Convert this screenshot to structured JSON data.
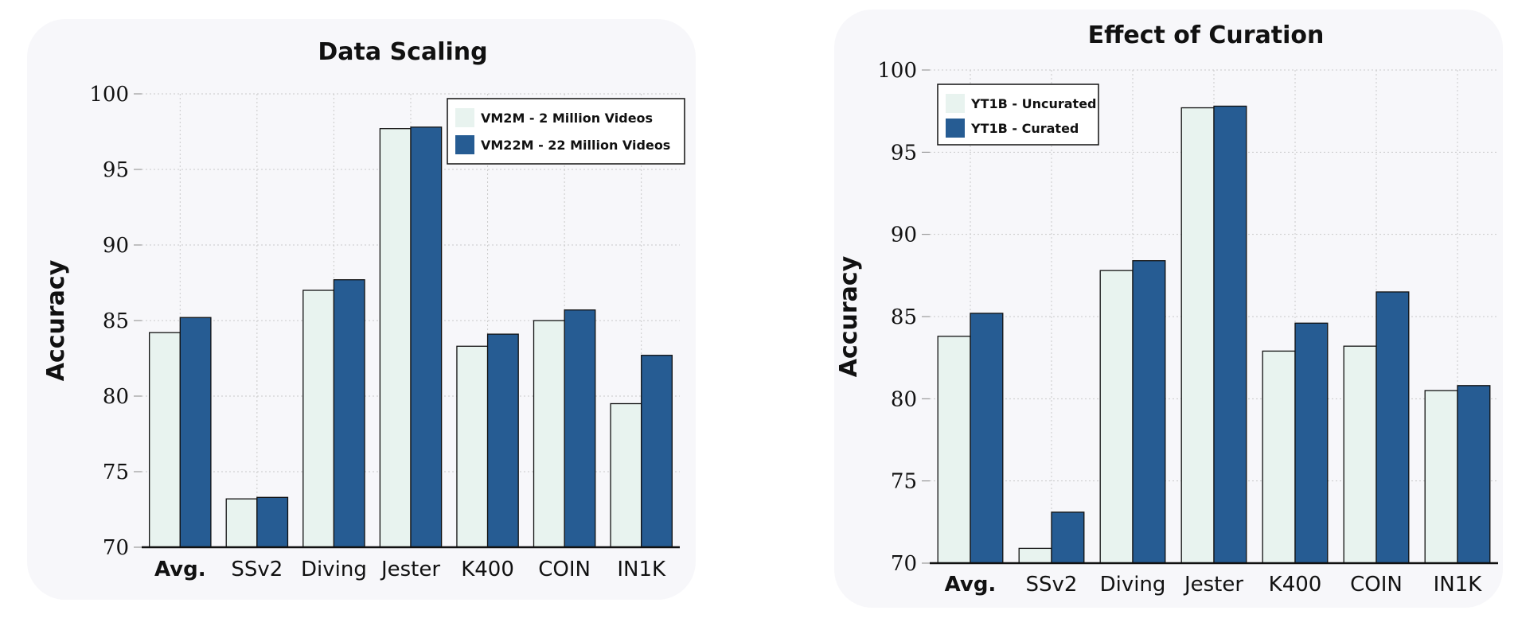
{
  "colors": {
    "panel_bg": "#f7f7fa",
    "light_bar": "#e8f3ef",
    "dark_bar": "#265c93",
    "bar_stroke": "#111111"
  },
  "chart_data": [
    {
      "type": "bar",
      "title": "Data Scaling",
      "xlabel": "",
      "ylabel": "Accuracy",
      "ylim": [
        70,
        100
      ],
      "yticks": [
        "70",
        "75",
        "80",
        "85",
        "90",
        "95",
        "100"
      ],
      "categories": [
        "Avg.",
        "SSv2",
        "Diving",
        "Jester",
        "K400",
        "COIN",
        "IN1K"
      ],
      "bold_category": "Avg.",
      "grid": true,
      "legend_position": "top-right",
      "series": [
        {
          "name": "VM2M - 2 Million Videos",
          "color": "#e8f3ef",
          "values": [
            84.2,
            73.2,
            87.0,
            97.7,
            83.3,
            85.0,
            79.5
          ]
        },
        {
          "name": "VM22M - 22 Million Videos",
          "color": "#265c93",
          "values": [
            85.2,
            73.3,
            87.7,
            97.8,
            84.1,
            85.7,
            82.7
          ]
        }
      ]
    },
    {
      "type": "bar",
      "title": "Effect of Curation",
      "xlabel": "",
      "ylabel": "Accuracy",
      "ylim": [
        70,
        100
      ],
      "yticks": [
        "70",
        "75",
        "80",
        "85",
        "90",
        "95",
        "100"
      ],
      "categories": [
        "Avg.",
        "SSv2",
        "Diving",
        "Jester",
        "K400",
        "COIN",
        "IN1K"
      ],
      "bold_category": "Avg.",
      "grid": true,
      "legend_position": "top-left",
      "series": [
        {
          "name": "YT1B - Uncurated",
          "color": "#e8f3ef",
          "values": [
            83.8,
            70.9,
            87.8,
            97.7,
            82.9,
            83.2,
            80.5
          ]
        },
        {
          "name": "YT1B - Curated",
          "color": "#265c93",
          "values": [
            85.2,
            73.1,
            88.4,
            97.8,
            84.6,
            86.5,
            80.8
          ]
        }
      ]
    }
  ]
}
